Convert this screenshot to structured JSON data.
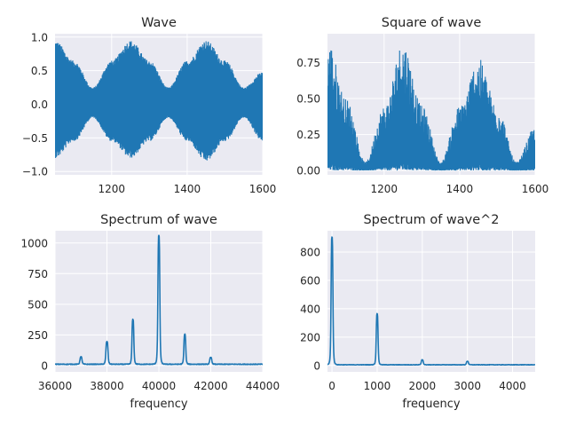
{
  "colors": {
    "axes_bg": "#eaeaf2",
    "grid": "#ffffff",
    "line": "#1f77b4",
    "text": "#262626"
  },
  "chart_data": [
    {
      "id": "wave",
      "type": "line",
      "title": "Wave",
      "xlabel": "",
      "ylabel": "",
      "xlim": [
        1050,
        1600
      ],
      "ylim": [
        -1.05,
        1.05
      ],
      "xticks": [
        1200,
        1400,
        1600
      ],
      "yticks": [
        -1.0,
        -0.5,
        0.0,
        0.5,
        1.0
      ],
      "tick_labels_x": [
        "1200",
        "1400",
        "1600"
      ],
      "tick_labels_y": [
        "−1.0",
        "−0.5",
        "0.0",
        "0.5",
        "1.0"
      ],
      "grid": true,
      "series": [
        {
          "envelope_x": [
            1050,
            1100,
            1150,
            1200,
            1250,
            1300,
            1350,
            1400,
            1450,
            1500,
            1550,
            1600
          ],
          "upper": [
            0.95,
            0.65,
            0.25,
            0.65,
            0.95,
            0.65,
            0.25,
            0.65,
            0.95,
            0.65,
            0.25,
            0.48
          ],
          "lower": [
            -0.8,
            -0.55,
            -0.2,
            -0.55,
            -0.8,
            -0.55,
            -0.2,
            -0.55,
            -0.85,
            -0.55,
            -0.2,
            -0.55
          ]
        }
      ]
    },
    {
      "id": "square",
      "type": "line",
      "title": "Square of wave",
      "xlabel": "",
      "ylabel": "",
      "xlim": [
        1050,
        1600
      ],
      "ylim": [
        -0.03,
        0.95
      ],
      "xticks": [
        1200,
        1400,
        1600
      ],
      "yticks": [
        0.0,
        0.25,
        0.5,
        0.75
      ],
      "tick_labels_x": [
        "1200",
        "1400",
        "1600"
      ],
      "tick_labels_y": [
        "0.00",
        "0.25",
        "0.50",
        "0.75"
      ],
      "grid": true,
      "series": [
        {
          "envelope_x": [
            1050,
            1100,
            1150,
            1200,
            1250,
            1300,
            1350,
            1400,
            1450,
            1500,
            1550,
            1600
          ],
          "upper": [
            0.92,
            0.5,
            0.06,
            0.45,
            0.9,
            0.45,
            0.06,
            0.45,
            0.78,
            0.45,
            0.06,
            0.3
          ],
          "lower": [
            0,
            0,
            0,
            0,
            0,
            0,
            0,
            0,
            0,
            0,
            0,
            0
          ]
        }
      ]
    },
    {
      "id": "spectrum",
      "type": "line",
      "title": "Spectrum of wave",
      "xlabel": "frequency",
      "ylabel": "",
      "xlim": [
        36000,
        44000
      ],
      "ylim": [
        -52,
        1100
      ],
      "xticks": [
        36000,
        38000,
        40000,
        42000,
        44000
      ],
      "yticks": [
        0,
        250,
        500,
        750,
        1000
      ],
      "tick_labels_x": [
        "36000",
        "38000",
        "40000",
        "42000",
        "44000"
      ],
      "tick_labels_y": [
        "0",
        "250",
        "500",
        "750",
        "1000"
      ],
      "grid": true,
      "series": [
        {
          "peaks": [
            {
              "x": 37000,
              "y": 60,
              "w": 45
            },
            {
              "x": 38000,
              "y": 185,
              "w": 45
            },
            {
              "x": 39000,
              "y": 365,
              "w": 40
            },
            {
              "x": 40000,
              "y": 1050,
              "w": 40
            },
            {
              "x": 41000,
              "y": 245,
              "w": 40
            },
            {
              "x": 42000,
              "y": 55,
              "w": 45
            }
          ],
          "baseline": 10
        }
      ]
    },
    {
      "id": "spectrum2",
      "type": "line",
      "title": "Spectrum of wave^2",
      "xlabel": "frequency",
      "ylabel": "",
      "xlim": [
        -100,
        4500
      ],
      "ylim": [
        -45,
        950
      ],
      "xticks": [
        0,
        1000,
        2000,
        3000,
        4000
      ],
      "yticks": [
        0,
        200,
        400,
        600,
        800
      ],
      "tick_labels_x": [
        "0",
        "1000",
        "2000",
        "3000",
        "4000"
      ],
      "tick_labels_y": [
        "0",
        "200",
        "400",
        "600",
        "800"
      ],
      "grid": true,
      "series": [
        {
          "peaks": [
            {
              "x": 0,
              "y": 900,
              "w": 22
            },
            {
              "x": 1000,
              "y": 360,
              "w": 22
            },
            {
              "x": 2000,
              "y": 35,
              "w": 24
            },
            {
              "x": 3000,
              "y": 25,
              "w": 24
            }
          ],
          "baseline": 5
        }
      ]
    }
  ]
}
